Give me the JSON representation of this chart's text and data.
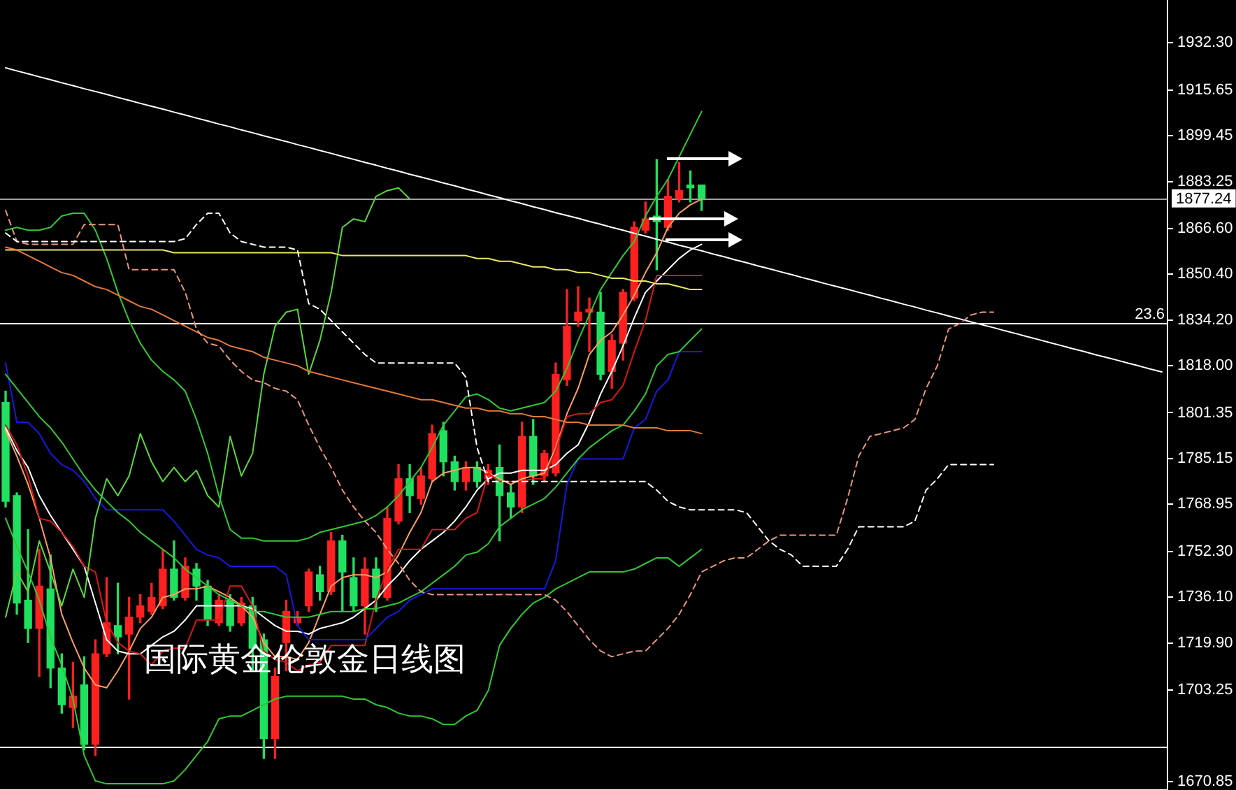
{
  "chart_data": {
    "type": "candlestick",
    "title": "国际黄金伦敦金日线图",
    "categories": [
      null,
      null,
      null,
      null,
      null,
      null,
      null,
      null,
      null,
      null,
      null,
      null,
      null,
      null,
      null,
      null,
      null,
      null,
      null,
      null,
      null,
      null,
      null,
      null,
      null,
      null,
      null,
      null,
      null,
      null,
      null,
      null,
      null,
      null,
      null,
      null,
      null,
      null,
      null,
      null,
      null,
      null,
      null,
      null,
      null,
      null,
      null,
      null,
      null,
      null,
      null,
      null,
      null,
      null,
      null,
      null,
      null,
      null,
      null,
      null,
      null,
      null,
      null,
      null,
      null,
      null,
      null,
      null,
      null,
      null,
      null,
      null,
      null,
      null,
      null,
      null,
      null,
      null,
      null,
      null,
      null,
      null,
      null,
      null,
      null,
      null,
      null,
      null,
      null,
      null,
      null,
      null,
      null,
      null,
      null,
      null,
      null,
      null,
      null,
      null,
      null,
      null,
      null,
      null
    ],
    "ohlc": [
      [
        1805,
        1809,
        1768,
        1770
      ],
      [
        1772,
        1773,
        1730,
        1734
      ],
      [
        1735,
        1760,
        1720,
        1725
      ],
      [
        1725,
        1753,
        1708,
        1740
      ],
      [
        1739,
        1751,
        1704,
        1711
      ],
      [
        1711,
        1716,
        1695,
        1698
      ],
      [
        1697,
        1713,
        1690,
        1701
      ],
      [
        1705,
        1715,
        1682,
        1684
      ],
      [
        1684,
        1721,
        1680,
        1716
      ],
      [
        1716,
        1743,
        1715,
        1727
      ],
      [
        1726,
        1741,
        1716,
        1722
      ],
      [
        1723,
        1736,
        1700,
        1729
      ],
      [
        1729,
        1737,
        1727,
        1733
      ],
      [
        1731,
        1741,
        1730,
        1736
      ],
      [
        1733,
        1753,
        1732,
        1746
      ],
      [
        1746,
        1756,
        1735,
        1736
      ],
      [
        1736,
        1750,
        1735,
        1747
      ],
      [
        1746,
        1748,
        1735,
        1740
      ],
      [
        1740,
        1742,
        1726,
        1728
      ],
      [
        1727,
        1737,
        1726,
        1735
      ],
      [
        1735,
        1737,
        1724,
        1726
      ],
      [
        1727,
        1736,
        1726,
        1734
      ],
      [
        1733,
        1736,
        1710,
        1718
      ],
      [
        1721,
        1723,
        1679,
        1686
      ],
      [
        1686,
        1711,
        1679,
        1708
      ],
      [
        1720,
        1735,
        1710,
        1731
      ],
      [
        1727,
        1731,
        1726,
        1729
      ],
      [
        1733,
        1746,
        1731,
        1745
      ],
      [
        1744,
        1747,
        1735,
        1738
      ],
      [
        1738,
        1759,
        1737,
        1756
      ],
      [
        1756,
        1758,
        1731,
        1745
      ],
      [
        1743,
        1750,
        1731,
        1733
      ],
      [
        1733,
        1750,
        1723,
        1746
      ],
      [
        1746,
        1750,
        1731,
        1736
      ],
      [
        1736,
        1768,
        1735,
        1764
      ],
      [
        1763,
        1783,
        1762,
        1778
      ],
      [
        1778,
        1783,
        1766,
        1772
      ],
      [
        1771,
        1782,
        1769,
        1779
      ],
      [
        1778,
        1797,
        1777,
        1794
      ],
      [
        1795,
        1798,
        1779,
        1784
      ],
      [
        1784,
        1786,
        1774,
        1777
      ],
      [
        1777,
        1784,
        1774,
        1782
      ],
      [
        1782,
        1784,
        1775,
        1777
      ],
      [
        1778,
        1783,
        1776,
        1781
      ],
      [
        1782,
        1790,
        1756,
        1772
      ],
      [
        1773,
        1776,
        1764,
        1768
      ],
      [
        1768,
        1798,
        1766,
        1793
      ],
      [
        1793,
        1799,
        1776,
        1779
      ],
      [
        1779,
        1788,
        1777,
        1787
      ],
      [
        1780,
        1819,
        1779,
        1815
      ],
      [
        1813,
        1845,
        1811,
        1832
      ],
      [
        1834,
        1846,
        1832,
        1837
      ],
      [
        1837,
        1842,
        1823,
        1838
      ],
      [
        1837,
        1844,
        1813,
        1815
      ],
      [
        1816,
        1829,
        1810,
        1827
      ],
      [
        1826,
        1845,
        1820,
        1844
      ],
      [
        1842,
        1869,
        1841,
        1867
      ],
      [
        1866,
        1876,
        1865,
        1870
      ],
      [
        1871,
        1891,
        1852,
        1869
      ],
      [
        1867,
        1884,
        1866,
        1878
      ],
      [
        1877,
        1890,
        1876,
        1880
      ],
      [
        1882,
        1887,
        1876,
        1881
      ],
      [
        1882,
        1882,
        1873,
        1877.24
      ],
      null,
      null,
      null,
      null,
      null,
      null,
      null,
      null,
      null,
      null,
      null,
      null,
      null,
      null,
      null,
      null,
      null,
      null,
      null,
      null,
      null,
      null,
      null,
      null,
      null,
      null,
      null,
      null,
      null,
      null,
      null,
      null,
      null,
      null,
      null,
      null,
      null,
      null,
      null,
      null,
      null
    ],
    "colors": [
      "#20e060",
      "#20e060",
      "#20e060",
      "#ff2020",
      "#20e060",
      "#20e060",
      "#ff2020",
      "#20e060",
      "#ff2020",
      "#ff2020",
      "#20e060",
      "#ff2020",
      "#ff2020",
      "#ff2020",
      "#ff2020",
      "#20e060",
      "#ff2020",
      "#20e060",
      "#20e060",
      "#ff2020",
      "#20e060",
      "#ff2020",
      "#20e060",
      "#20e060",
      "#ff2020",
      "#ff2020",
      "#ff2020",
      "#ff2020",
      "#20e060",
      "#ff2020",
      "#20e060",
      "#20e060",
      "#ff2020",
      "#20e060",
      "#ff2020",
      "#ff2020",
      "#20e060",
      "#ff2020",
      "#ff2020",
      "#20e060",
      "#20e060",
      "#ff2020",
      "#20e060",
      "#ff2020",
      "#20e060",
      "#20e060",
      "#ff2020",
      "#20e060",
      "#ff2020",
      "#ff2020",
      "#ff2020",
      "#ff2020",
      "#ff2020",
      "#20e060",
      "#ff2020",
      "#ff2020",
      "#ff2020",
      "#ff2020",
      "#20e060",
      "#ff2020",
      "#ff2020",
      "#20e060",
      "#20e060",
      null,
      null,
      null,
      null,
      null,
      null,
      null,
      null,
      null,
      null,
      null,
      null,
      null,
      null,
      null,
      null,
      null,
      null,
      null,
      null,
      null,
      null,
      null,
      null,
      null,
      null,
      null,
      null,
      null,
      null,
      null,
      null,
      null,
      null,
      null,
      null,
      null,
      null,
      null,
      null,
      null
    ],
    "series": [
      {
        "type": "line",
        "color": "#ffffff",
        "line_style": "dashed",
        "values": [
          1865,
          1862,
          1862,
          1862,
          1862,
          1862,
          1862,
          1862,
          1862,
          1862,
          1862,
          1862,
          1862,
          1862,
          1862,
          1862,
          1863,
          1868,
          1872,
          1872,
          1865,
          1862,
          1861,
          1860,
          1860,
          1860,
          1859,
          1840,
          1838,
          1834,
          1830,
          1826,
          1822,
          1819,
          1819,
          1819,
          1819,
          1819,
          1819,
          1819,
          1819,
          1814,
          1789,
          1777,
          1777,
          1777,
          1777,
          1777,
          1777,
          1777,
          1777,
          1777,
          1777,
          1777,
          1777,
          1777,
          1777,
          1777,
          1774,
          1770,
          1768,
          1767,
          1767,
          1767,
          1767,
          1767,
          1766,
          1761,
          1756,
          1753,
          1751,
          1747,
          1747,
          1747,
          1747,
          1753,
          1761,
          1761,
          1761,
          1761,
          1761,
          1763,
          1774,
          1778,
          1783,
          1783,
          1783,
          1783,
          1783,
          null,
          null,
          null,
          null,
          null,
          null,
          null,
          null,
          null,
          null,
          null,
          null,
          null,
          null,
          null
        ]
      },
      {
        "type": "line",
        "color": "#e9967a",
        "line_style": "dashed",
        "values": [
          1873,
          1862,
          1861,
          1861,
          1861,
          1861,
          1861,
          1868,
          1868,
          1868,
          1868,
          1852,
          1852,
          1852,
          1852,
          1852,
          1844,
          1831,
          1826,
          1825,
          1820,
          1816,
          1813,
          1812,
          1810,
          1809,
          1806,
          1797,
          1789,
          1782,
          1774,
          1768,
          1763,
          1759,
          1753,
          1748,
          1742,
          1738,
          1737,
          1737,
          1737,
          1737,
          1737,
          1737,
          1737,
          1737,
          1737,
          1737,
          1737,
          1735,
          1731,
          1726,
          1721,
          1717,
          1715,
          1716,
          1717,
          1717,
          1721,
          1725,
          1730,
          1737,
          1745,
          1747,
          1749,
          1750,
          1750,
          1753,
          1756,
          1758,
          1758,
          1758,
          1758,
          1758,
          1758,
          1771,
          1786,
          1793,
          1794,
          1795,
          1796,
          1799,
          1810,
          1818,
          1831,
          1833,
          1836,
          1837,
          1837,
          null,
          null,
          null,
          null,
          null,
          null,
          null,
          null,
          null,
          null,
          null,
          null,
          null,
          null,
          null
        ]
      },
      {
        "type": "line",
        "color": "#e07a3a",
        "values": [
          1860,
          1859,
          1857,
          1855,
          1853,
          1851,
          1850,
          1848,
          1846,
          1845,
          1843,
          1841,
          1839,
          1838,
          1836,
          1834,
          1832,
          1830,
          1828,
          1827,
          1825,
          1824,
          1823,
          1821,
          1820,
          1819,
          1818,
          1816,
          1815,
          1814,
          1813,
          1812,
          1811,
          1810,
          1809,
          1808,
          1807,
          1806,
          1806,
          1805,
          1804,
          1803,
          1803,
          1802,
          1802,
          1801,
          1801,
          1800,
          1800,
          1799,
          1798,
          1798,
          1797,
          1797,
          1797,
          1797,
          1796,
          1796,
          1796,
          1795,
          1795,
          1795,
          1794,
          null,
          null,
          null,
          null,
          null,
          null,
          null,
          null,
          null,
          null,
          null,
          null,
          null,
          null,
          null,
          null,
          null,
          null,
          null,
          null,
          null,
          null,
          null,
          null,
          null,
          null,
          null,
          null,
          null,
          null,
          null,
          null,
          null,
          null,
          null,
          null,
          null,
          null,
          null,
          null,
          null
        ]
      },
      {
        "type": "line",
        "color": "#e8e860",
        "values": [
          1859,
          1859,
          1859,
          1859,
          1859,
          1859,
          1859,
          1859,
          1859,
          1859,
          1859,
          1859,
          1859,
          1859,
          1859,
          1858,
          1858,
          1858,
          1858,
          1858,
          1858,
          1858,
          1858,
          1858,
          1858,
          1858,
          1858,
          1858,
          1858,
          1858,
          1857,
          1857,
          1857,
          1857,
          1857,
          1857,
          1857,
          1857,
          1857,
          1857,
          1857,
          1857,
          1856,
          1856,
          1855,
          1855,
          1854,
          1853,
          1853,
          1852,
          1852,
          1851,
          1851,
          1850,
          1849,
          1849,
          1848,
          1848,
          1847,
          1847,
          1846,
          1845,
          1845,
          null,
          null,
          null,
          null,
          null,
          null,
          null,
          null,
          null,
          null,
          null,
          null,
          null,
          null,
          null,
          null,
          null,
          null,
          null,
          null,
          null,
          null,
          null,
          null,
          null,
          null,
          null,
          null,
          null,
          null,
          null,
          null,
          null,
          null,
          null,
          null,
          null,
          null,
          null,
          null,
          null
        ]
      },
      {
        "type": "line",
        "color": "#32c832",
        "values": [
          1866,
          1867,
          1866,
          1866,
          1867,
          1871,
          1872,
          1872,
          1866,
          1856,
          1844,
          1834,
          1826,
          1820,
          1816,
          1813,
          1809,
          1799,
          1787,
          1772,
          1760,
          1757,
          1757,
          1756,
          1756,
          1756,
          1756,
          1757,
          1759,
          1760,
          1761,
          1762,
          1763,
          1765,
          1768,
          1772,
          1777,
          1782,
          1789,
          1797,
          1802,
          1807,
          1808,
          1806,
          1803,
          1802,
          1803,
          1804,
          1805,
          1809,
          1817,
          1827,
          1836,
          1845,
          1851,
          1857,
          1862,
          1871,
          1878,
          1884,
          1892,
          1900,
          1908,
          null,
          null,
          null,
          null,
          null,
          null,
          null,
          null,
          null,
          null,
          null,
          null,
          null,
          null,
          null,
          null,
          null,
          null,
          null,
          null,
          null,
          null,
          null,
          null,
          null,
          null,
          null,
          null,
          null,
          null,
          null,
          null,
          null,
          null,
          null,
          null,
          null,
          null,
          null,
          null,
          null
        ]
      },
      {
        "type": "line",
        "color": "#32c832",
        "values": [
          1815,
          1810,
          1805,
          1800,
          1796,
          1791,
          1785,
          1779,
          1774,
          1770,
          1766,
          1763,
          1759,
          1756,
          1753,
          1750,
          1746,
          1743,
          1740,
          1737,
          1735,
          1733,
          1731,
          1731,
          1730,
          1729,
          1729,
          1729,
          1730,
          1731,
          1731,
          1731,
          1732,
          1732,
          1733,
          1734,
          1736,
          1738,
          1741,
          1744,
          1747,
          1751,
          1752,
          1755,
          1761,
          1764,
          1767,
          1769,
          1771,
          1775,
          1780,
          1785,
          1789,
          1792,
          1795,
          1797,
          1802,
          1808,
          1818,
          1822,
          1823,
          1827,
          1831,
          null,
          null,
          null,
          null,
          null,
          null,
          null,
          null,
          null,
          null,
          null,
          null,
          null,
          null,
          null,
          null,
          null,
          null,
          null,
          null,
          null,
          null,
          null,
          null,
          null,
          null,
          null,
          null,
          null,
          null,
          null,
          null,
          null,
          null,
          null,
          null,
          null,
          null,
          null,
          null,
          null
        ]
      },
      {
        "type": "line",
        "color": "#32c832",
        "values": [
          1764,
          1754,
          1745,
          1735,
          1722,
          1712,
          1700,
          1680,
          1671,
          1670,
          1670,
          1670,
          1670,
          1670,
          1670,
          1671,
          1675,
          1680,
          1685,
          1693,
          1694,
          1694,
          1696,
          1698,
          1700,
          1701,
          1701,
          1701,
          1701,
          1701,
          1701,
          1700,
          1700,
          1698,
          1697,
          1695,
          1694,
          1694,
          1693,
          1691,
          1691,
          1694,
          1696,
          1703,
          1719,
          1725,
          1730,
          1734,
          1736,
          1739,
          1741,
          1743,
          1745,
          1745,
          1745,
          1745,
          1746,
          1748,
          1750,
          1750,
          1747,
          1750,
          1753,
          null,
          null,
          null,
          null,
          null,
          null,
          null,
          null,
          null,
          null,
          null,
          null,
          null,
          null,
          null,
          null,
          null,
          null,
          null,
          null,
          null,
          null,
          null,
          null,
          null,
          null,
          null,
          null,
          null,
          null,
          null,
          null,
          null,
          null,
          null,
          null,
          null,
          null,
          null,
          null,
          null
        ]
      },
      {
        "type": "line",
        "color": "#5ad83a",
        "values": [
          1729,
          1745,
          1738,
          1756,
          1745,
          1733,
          1746,
          1736,
          1764,
          1778,
          1772,
          1779,
          1794,
          1784,
          1777,
          1782,
          1777,
          1781,
          1772,
          1768,
          1793,
          1779,
          1787,
          1815,
          1832,
          1837,
          1838,
          1815,
          1827,
          1844,
          1867,
          1870,
          1869,
          1878,
          1880,
          1881,
          1877,
          null,
          null,
          null,
          null,
          null,
          null,
          null,
          null,
          null,
          null,
          null,
          null,
          null,
          null,
          null,
          null,
          null,
          null,
          null,
          null,
          null,
          null,
          null,
          null,
          null,
          null,
          null,
          null,
          null,
          null,
          null,
          null,
          null,
          null,
          null,
          null,
          null,
          null,
          null,
          null,
          null,
          null,
          null,
          null,
          null,
          null,
          null,
          null,
          null,
          null,
          null,
          null,
          null,
          null,
          null,
          null,
          null,
          null,
          null,
          null,
          null,
          null,
          null,
          null,
          null,
          null,
          null
        ]
      },
      {
        "type": "line",
        "color": "#1818e0",
        "values": [
          1819,
          1798,
          1798,
          1794,
          1787,
          1783,
          1781,
          1777,
          1771,
          1767,
          1767,
          1767,
          1767,
          1767,
          1767,
          1763,
          1758,
          1753,
          1751,
          1750,
          1747,
          1747,
          1747,
          1747,
          1747,
          1744,
          1726,
          1721,
          1721,
          1721,
          1721,
          1721,
          1721,
          1725,
          1729,
          1731,
          1735,
          1737,
          1739,
          1739,
          1739,
          1739,
          1739,
          1739,
          1739,
          1739,
          1739,
          1739,
          1739,
          1749,
          1776,
          1785,
          1785,
          1785,
          1785,
          1785,
          1796,
          1799,
          1809,
          1813,
          1823,
          1823,
          1823,
          null,
          null,
          null,
          null,
          null,
          null,
          null,
          null,
          null,
          null,
          null,
          null,
          null,
          null,
          null,
          null,
          null,
          null,
          null,
          null,
          null,
          null,
          null,
          null,
          null,
          null,
          null,
          null,
          null,
          null,
          null,
          null,
          null,
          null,
          null,
          null,
          null,
          null,
          null,
          null,
          null
        ]
      },
      {
        "type": "line",
        "color": "#d81818",
        "values": [
          1797,
          1790,
          1779,
          1764,
          1763,
          1759,
          1754,
          1747,
          1745,
          1727,
          1720,
          1717,
          1716,
          1712,
          1717,
          1718,
          1718,
          1728,
          1728,
          1728,
          1740,
          1740,
          1733,
          1717,
          1714,
          1713,
          1710,
          1712,
          1713,
          1719,
          1719,
          1719,
          1719,
          1735,
          1746,
          1753,
          1753,
          1753,
          1760,
          1760,
          1760,
          1764,
          1766,
          1780,
          1777,
          1777,
          1777,
          1778,
          1778,
          1788,
          1800,
          1801,
          1801,
          1805,
          1806,
          1811,
          1823,
          1834,
          1850,
          1850,
          1850,
          1850,
          1850,
          null,
          null,
          null,
          null,
          null,
          null,
          null,
          null,
          null,
          null,
          null,
          null,
          null,
          null,
          null,
          null,
          null,
          null,
          null,
          null,
          null,
          null,
          null,
          null,
          null,
          null,
          null,
          null,
          null,
          null,
          null,
          null,
          null,
          null,
          null,
          null,
          null,
          null,
          null,
          null,
          null
        ]
      },
      {
        "type": "line",
        "color": "#ffffff",
        "values": [
          1796,
          1788,
          1782,
          1772,
          1765,
          1759,
          1753,
          1747,
          1734,
          1721,
          1717,
          1716,
          1716,
          1719,
          1722,
          1724,
          1728,
          1733,
          1733,
          1733,
          1733,
          1733,
          1732,
          1729,
          1726,
          1724,
          1724,
          1723,
          1725,
          1726,
          1727,
          1729,
          1732,
          1735,
          1740,
          1744,
          1749,
          1753,
          1756,
          1759,
          1763,
          1768,
          1774,
          1778,
          1780,
          1780,
          1781,
          1781,
          1781,
          1783,
          1787,
          1790,
          1798,
          1808,
          1816,
          1825,
          1835,
          1844,
          1848,
          1852,
          1856,
          1859,
          1861,
          null,
          null,
          null,
          null,
          null,
          null,
          null,
          null,
          null,
          null,
          null,
          null,
          null,
          null,
          null,
          null,
          null,
          null,
          null,
          null,
          null,
          null,
          null,
          null,
          null,
          null,
          null,
          null,
          null,
          null,
          null,
          null,
          null,
          null,
          null,
          null,
          null,
          null,
          null,
          null,
          null
        ]
      },
      {
        "type": "line",
        "color": "#ffa060",
        "values": [
          1795,
          1786,
          1776,
          1764,
          1750,
          1730,
          1720,
          1711,
          1705,
          1704,
          1710,
          1717,
          1725,
          1729,
          1736,
          1737,
          1739,
          1739,
          1740,
          1738,
          1736,
          1733,
          1729,
          1720,
          1715,
          1715,
          1714,
          1720,
          1730,
          1740,
          1743,
          1744,
          1744,
          1743,
          1745,
          1751,
          1759,
          1766,
          1777,
          1780,
          1781,
          1782,
          1782,
          1780,
          1778,
          1776,
          1778,
          1779,
          1780,
          1789,
          1801,
          1810,
          1822,
          1827,
          1830,
          1836,
          1843,
          1851,
          1858,
          1867,
          1872,
          1875,
          1877,
          null,
          null,
          null,
          null,
          null,
          null,
          null,
          null,
          null,
          null,
          null,
          null,
          null,
          null,
          null,
          null,
          null,
          null,
          null,
          null,
          null,
          null,
          null,
          null,
          null,
          null,
          null,
          null,
          null,
          null,
          null,
          null,
          null,
          null,
          null,
          null,
          null,
          null,
          null,
          null,
          null
        ]
      },
      {
        "type": "line",
        "color": "#ffffff",
        "values": [
          1923.5,
          1922.4,
          1921.4,
          1920.3,
          1919.3,
          1918.2,
          1917.2,
          1916.1,
          1915.1,
          1914.1,
          1913.0,
          1912.0,
          1910.9,
          1909.9,
          1908.9,
          1907.8,
          1906.8,
          1905.7,
          1904.7,
          1903.6,
          1902.6,
          1901.5,
          1900.5,
          1899.4,
          1898.4,
          1897.4,
          1896.3,
          1895.3,
          1894.2,
          1893.2,
          1892.1,
          1891.1,
          1890.0,
          1889.0,
          1887.9,
          1886.9,
          1885.8,
          1884.8,
          1883.8,
          1882.7,
          1881.7,
          1880.6,
          1879.6,
          1878.5,
          1877.5,
          1876.4,
          1875.4,
          1874.3,
          1873.3,
          1872.2,
          1871.2,
          1870.2,
          1869.1,
          1868.1,
          1867.0,
          1866.0,
          1864.9,
          1863.9,
          1862.8,
          1861.8,
          1860.7,
          1859.7,
          1858.7,
          1857.6,
          1856.6,
          1855.5,
          1854.5,
          1853.4,
          1852.4,
          1851.3,
          1850.3,
          1849.2,
          1848.2,
          1847.1,
          1846.1,
          1845.1,
          1844.0,
          1843.0,
          1841.9,
          1840.9,
          1839.8,
          1838.8,
          1837.7,
          1836.7,
          1835.6,
          1834.6,
          1833.5,
          1832.5,
          1831.5,
          1830.4,
          1829.4,
          1828.3,
          1827.3,
          1826.2,
          1825.2,
          1824.1,
          1823.1,
          1822.0,
          1821.0,
          1820.0,
          1818.9,
          1817.9,
          1816.8,
          1815.8
        ]
      }
    ],
    "ref_lines": [
      {
        "axis": "y",
        "value": 1877.24,
        "color": "#a0a0a0"
      },
      {
        "axis": "y",
        "value": 1833,
        "color": "#ffffff"
      },
      {
        "axis": "y",
        "value": 1683,
        "color": "#ffffff"
      }
    ],
    "annotations": [
      {
        "text": "23.6",
        "y": 1833
      }
    ],
    "ylim": [
      1667.8,
      1947.5
    ],
    "yticks": [
      1670.85,
      1703.25,
      {
        "value": 1719.9,
        "label": "1719.90"
      },
      {
        "value": 1736.1,
        "label": "1736.10"
      },
      {
        "value": 1752.3,
        "label": "1752.30"
      },
      1768.95,
      1785.15,
      1801.35,
      {
        "value": 1818,
        "label": "1818.00"
      },
      {
        "value": 1834.2,
        "label": "1834.20"
      },
      {
        "value": 1850.4,
        "label": "1850.40"
      },
      {
        "value": 1866.6,
        "label": "1866.60"
      },
      1877.24,
      1883.25,
      1899.45,
      1915.65,
      {
        "value": 1932.3,
        "label": "1932.30"
      }
    ],
    "tick_labels": "y"
  }
}
